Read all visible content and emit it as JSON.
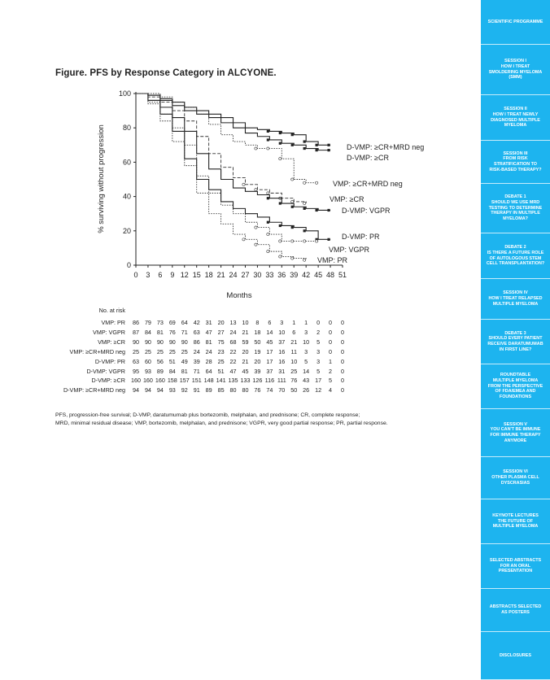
{
  "figure": {
    "title": "Figure. PFS by Response Category in ALCYONE."
  },
  "chart_data": {
    "type": "line",
    "title": "Figure. PFS by Response Category in ALCYONE.",
    "xlabel": "Months",
    "ylabel": "% surviving without progression",
    "xlim": [
      0,
      51
    ],
    "ylim": [
      0,
      100
    ],
    "x_ticks": [
      0,
      3,
      6,
      9,
      12,
      15,
      18,
      21,
      24,
      27,
      30,
      33,
      36,
      39,
      42,
      45,
      48,
      51
    ],
    "y_ticks": [
      0,
      20,
      40,
      60,
      80,
      100
    ],
    "grid": false,
    "series": [
      {
        "name": "D-VMP: ≥CR+MRD neg",
        "line_style": "solid",
        "color": "#222222",
        "x": [
          0,
          3,
          6,
          9,
          12,
          15,
          18,
          21,
          24,
          27,
          30,
          33,
          36,
          39,
          42,
          45,
          48
        ],
        "y": [
          100,
          99,
          97,
          95,
          92,
          90,
          88,
          86,
          83,
          80,
          79,
          78,
          77,
          76,
          72,
          70,
          70
        ]
      },
      {
        "name": "D-VMP: ≥CR",
        "line_style": "solid",
        "color": "#222222",
        "x": [
          0,
          3,
          6,
          9,
          12,
          15,
          18,
          21,
          24,
          27,
          30,
          33,
          36,
          39,
          42,
          45,
          48
        ],
        "y": [
          100,
          99,
          96,
          93,
          90,
          88,
          86,
          83,
          80,
          77,
          75,
          73,
          71,
          70,
          68,
          67,
          67
        ]
      },
      {
        "name": "VMP: ≥CR+MRD neg",
        "line_style": "dotted",
        "color": "#333333",
        "x": [
          0,
          3,
          6,
          9,
          12,
          15,
          18,
          21,
          24,
          27,
          30,
          33,
          36,
          39,
          42,
          45
        ],
        "y": [
          100,
          100,
          98,
          95,
          92,
          88,
          82,
          76,
          72,
          70,
          68,
          68,
          62,
          50,
          48,
          48
        ]
      },
      {
        "name": "VMP: ≥CR",
        "line_style": "dashed",
        "color": "#333333",
        "x": [
          0,
          3,
          6,
          9,
          12,
          15,
          18,
          21,
          24,
          27,
          30,
          33,
          36,
          39,
          42
        ],
        "y": [
          100,
          98,
          95,
          90,
          84,
          75,
          65,
          57,
          51,
          47,
          44,
          42,
          39,
          37,
          36
        ]
      },
      {
        "name": "D-VMP: VGPR",
        "line_style": "solid",
        "color": "#222222",
        "x": [
          0,
          3,
          6,
          9,
          12,
          15,
          18,
          21,
          24,
          27,
          30,
          33,
          36,
          39,
          42,
          45,
          48
        ],
        "y": [
          100,
          96,
          92,
          86,
          78,
          65,
          56,
          50,
          45,
          43,
          41,
          39,
          36,
          34,
          33,
          32,
          32
        ]
      },
      {
        "name": "D-VMP: PR",
        "line_style": "solid",
        "color": "#222222",
        "x": [
          0,
          3,
          6,
          9,
          12,
          15,
          18,
          21,
          24,
          27,
          30,
          33,
          36,
          39,
          42,
          45,
          48
        ],
        "y": [
          100,
          96,
          88,
          78,
          62,
          50,
          44,
          37,
          33,
          30,
          28,
          25,
          23,
          22,
          20,
          15,
          15
        ]
      },
      {
        "name": "VMP: VGPR",
        "line_style": "dotted",
        "color": "#333333",
        "x": [
          0,
          3,
          6,
          9,
          12,
          15,
          18,
          21,
          24,
          27,
          30,
          33,
          36,
          39,
          42,
          45
        ],
        "y": [
          100,
          95,
          88,
          80,
          70,
          52,
          42,
          35,
          30,
          25,
          22,
          18,
          14,
          14,
          14,
          14
        ]
      },
      {
        "name": "VMP: PR",
        "line_style": "dotted",
        "color": "#333333",
        "x": [
          0,
          3,
          6,
          9,
          12,
          15,
          18,
          21,
          24,
          27,
          30,
          33,
          36,
          39,
          42
        ],
        "y": [
          100,
          94,
          84,
          72,
          58,
          42,
          30,
          24,
          18,
          15,
          12,
          8,
          5,
          4,
          3
        ]
      }
    ],
    "risk_table": {
      "header": "No. at risk",
      "rows": [
        {
          "label": "VMP: PR",
          "values": [
            "86",
            "79",
            "73",
            "69",
            "64",
            "42",
            "31",
            "20",
            "13",
            "10",
            "8",
            "6",
            "3",
            "1",
            "1",
            "0",
            "0",
            "0"
          ]
        },
        {
          "label": "VMP: VGPR",
          "values": [
            "87",
            "84",
            "81",
            "76",
            "71",
            "63",
            "47",
            "27",
            "24",
            "21",
            "18",
            "14",
            "10",
            "6",
            "3",
            "2",
            "0",
            "0"
          ]
        },
        {
          "label": "VMP: ≥CR",
          "values": [
            "90",
            "90",
            "90",
            "90",
            "90",
            "86",
            "81",
            "75",
            "68",
            "59",
            "50",
            "45",
            "37",
            "21",
            "10",
            "5",
            "0",
            "0"
          ]
        },
        {
          "label": "VMP: ≥CR+MRD neg",
          "values": [
            "25",
            "25",
            "25",
            "25",
            "25",
            "24",
            "24",
            "23",
            "22",
            "20",
            "19",
            "17",
            "16",
            "11",
            "3",
            "3",
            "0",
            "0"
          ]
        },
        {
          "label": "D-VMP: PR",
          "values": [
            "63",
            "60",
            "56",
            "51",
            "49",
            "39",
            "28",
            "25",
            "22",
            "21",
            "20",
            "17",
            "16",
            "10",
            "5",
            "3",
            "1",
            "0"
          ]
        },
        {
          "label": "D-VMP: VGPR",
          "values": [
            "95",
            "93",
            "89",
            "84",
            "81",
            "71",
            "64",
            "51",
            "47",
            "45",
            "39",
            "37",
            "31",
            "25",
            "14",
            "5",
            "2",
            "0"
          ]
        },
        {
          "label": "D-VMP: ≥CR",
          "values": [
            "160",
            "160",
            "160",
            "158",
            "157",
            "151",
            "148",
            "141",
            "135",
            "133",
            "126",
            "116",
            "111",
            "76",
            "43",
            "17",
            "5",
            "0"
          ]
        },
        {
          "label": "D-VMP: ≥CR+MRD neg",
          "values": [
            "94",
            "94",
            "94",
            "93",
            "92",
            "91",
            "89",
            "85",
            "80",
            "80",
            "76",
            "74",
            "70",
            "50",
            "26",
            "12",
            "4",
            "0"
          ]
        }
      ]
    }
  },
  "footnote": {
    "line1": "PFS, progression-free survival; D-VMP, daratumumab plus bortezomib, melphalan, and prednisone; CR, complete response;",
    "line2": "MRD, minimal residual disease; VMP, bortezomib, melphalan, and prednisone; VGPR, very good partial response; PR, partial response."
  },
  "sidebar": {
    "color": "#1db4ef",
    "items": [
      {
        "lines": [
          "SCIENTIFIC PROGRAMME"
        ]
      },
      {
        "lines": [
          "SESSION I",
          "HOW I TREAT",
          "SMOLDERING MYELOMA",
          "(SMM)"
        ]
      },
      {
        "lines": [
          "SESSION II",
          "HOW I TREAT NEWLY",
          "DIAGNOSED MULTIPLE",
          "MYELOMA"
        ]
      },
      {
        "lines": [
          "SESSION III",
          "FROM RISK",
          "STRATIFICATION TO",
          "RISK-BASED THERAPY?"
        ]
      },
      {
        "lines": [
          "DEBATE 1",
          "SHOULD WE USE MRD",
          "TESTING TO DETERMINE",
          "THERAPY IN MULTIPLE",
          "MYELOMA?"
        ]
      },
      {
        "lines": [
          "DEBATE 2",
          "IS THERE A FUTURE ROLE",
          "OF AUTOLOGOUS STEM",
          "CELL TRANSPLANTATION?"
        ]
      },
      {
        "lines": [
          "SESSION IV",
          "HOW I TREAT RELAPSED",
          "MULTIPLE MYELOMA"
        ]
      },
      {
        "lines": [
          "DEBATE 3",
          "SHOULD EVERY PATIENT",
          "RECEIVE DARATUMUMAB",
          "IN FIRST LINE?"
        ]
      },
      {
        "lines": [
          "ROUNDTABLE",
          "MULTIPLE MYELOMA",
          "FROM THE PERSPECTIVE",
          "OF FDA/EMEA AND",
          "FOUNDATIONS"
        ]
      },
      {
        "lines": [
          "SESSION V",
          "YOU CAN'T BE IMMUNE",
          "FOR IMMUNE THERAPY",
          "ANYMORE"
        ]
      },
      {
        "lines": [
          "SESSION VI",
          "OTHER PLASMA CELL",
          "DYSCRASIAS"
        ]
      },
      {
        "lines": [
          "KEYNOTE LECTURES",
          "THE FUTURE OF",
          "MULTIPLE MYELOMA"
        ]
      },
      {
        "lines": [
          "SELECTED ABSTRACTS",
          "FOR AN ORAL",
          "PRESENTATION"
        ]
      },
      {
        "lines": [
          "ABSTRACTS SELECTED",
          "AS POSTERS"
        ]
      },
      {
        "lines": [
          "DISCLOSURES"
        ]
      }
    ]
  }
}
